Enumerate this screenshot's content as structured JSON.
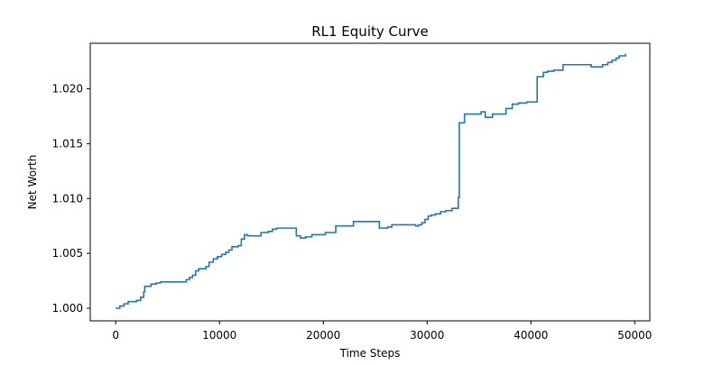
{
  "chart_data": {
    "type": "line",
    "title": "RL1 Equity Curve",
    "xlabel": "Time Steps",
    "ylabel": "Net Worth",
    "xlim": [
      -2450,
      51450
    ],
    "ylim": [
      0.99885,
      1.02415
    ],
    "xticks": [
      0,
      10000,
      20000,
      30000,
      40000,
      50000
    ],
    "xtick_labels": [
      "0",
      "10000",
      "20000",
      "30000",
      "40000",
      "50000"
    ],
    "yticks": [
      1.0,
      1.005,
      1.01,
      1.015,
      1.02
    ],
    "ytick_labels": [
      "1.000",
      "1.005",
      "1.010",
      "1.015",
      "1.020"
    ],
    "grid": false,
    "line_color": "#1f77b4",
    "series": [
      {
        "x": [
          0,
          400,
          800,
          1200,
          1600,
          2000,
          2400,
          2700,
          2800,
          3400,
          3900,
          4300,
          4800,
          6500,
          6800,
          7100,
          7400,
          7700,
          8000,
          8700,
          9000,
          9400,
          9800,
          10200,
          10600,
          10900,
          11200,
          11400,
          11800,
          12100,
          12400,
          12700,
          13400,
          14000,
          14700,
          15100,
          15500,
          15900,
          17400,
          17800,
          18300,
          18900,
          19300,
          20200,
          21200,
          22500,
          22900,
          25400,
          25600,
          26200,
          26600,
          28900,
          29200,
          29500,
          29800,
          30100,
          30400,
          30800,
          31300,
          31800,
          32400,
          33000,
          33100,
          33200,
          33600,
          35200,
          35600,
          36300,
          37100,
          37600,
          38200,
          38800,
          39200,
          39600,
          40600,
          41200,
          41600,
          42200,
          43100,
          44300,
          45800,
          46900,
          47400,
          47800,
          48200,
          48500,
          49100
        ],
        "y": [
          1.0,
          1.0002,
          1.0004,
          1.0006,
          1.0006,
          1.0007,
          1.001,
          1.0015,
          1.002,
          1.0022,
          1.0023,
          1.0024,
          1.0024,
          1.0024,
          1.0026,
          1.0028,
          1.003,
          1.0034,
          1.0036,
          1.0038,
          1.0042,
          1.0045,
          1.0047,
          1.0049,
          1.0051,
          1.0053,
          1.0056,
          1.0056,
          1.0057,
          1.0063,
          1.0067,
          1.0066,
          1.0066,
          1.0069,
          1.007,
          1.0072,
          1.0073,
          1.0073,
          1.0066,
          1.0064,
          1.0065,
          1.0067,
          1.0067,
          1.0069,
          1.0075,
          1.0075,
          1.0079,
          1.0073,
          1.0073,
          1.0074,
          1.0076,
          1.0075,
          1.0076,
          1.0078,
          1.0081,
          1.0084,
          1.0085,
          1.0086,
          1.0088,
          1.0089,
          1.0091,
          1.0101,
          1.0169,
          1.0169,
          1.0177,
          1.0179,
          1.0174,
          1.0177,
          1.0177,
          1.0182,
          1.0186,
          1.0187,
          1.0187,
          1.0188,
          1.0211,
          1.0215,
          1.0216,
          1.0217,
          1.0222,
          1.0222,
          1.022,
          1.0222,
          1.0224,
          1.0226,
          1.0228,
          1.023,
          1.0232
        ]
      }
    ]
  }
}
